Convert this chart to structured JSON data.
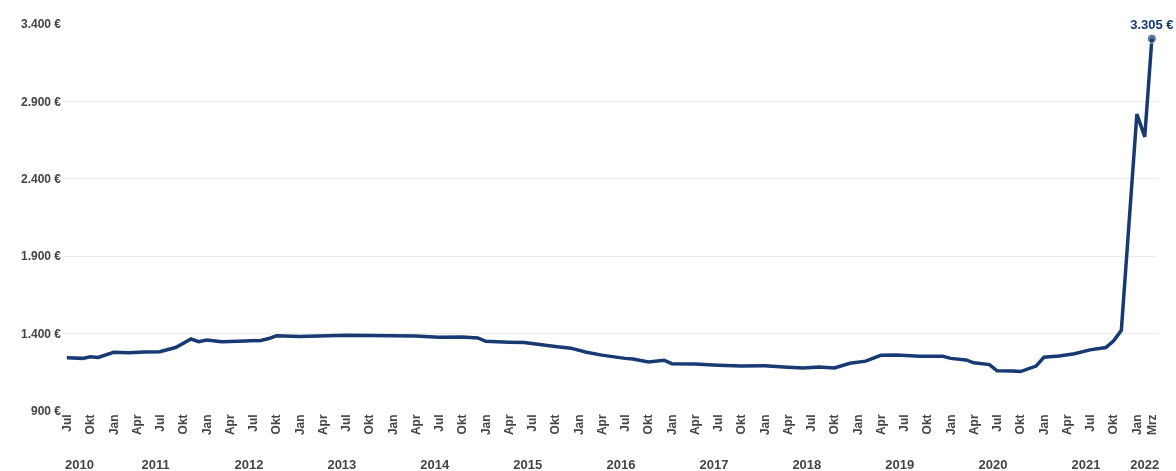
{
  "chart_data": {
    "type": "line",
    "x": [
      "2010-07",
      "2010-09",
      "2010-10",
      "2010-11",
      "2011-01",
      "2011-03",
      "2011-05",
      "2011-07",
      "2011-09",
      "2011-11",
      "2011-12",
      "2012-01",
      "2012-03",
      "2012-06",
      "2012-08",
      "2012-09",
      "2012-10",
      "2013-01",
      "2013-07",
      "2013-10",
      "2014-01",
      "2014-04",
      "2014-07",
      "2014-10",
      "2014-12",
      "2015-01",
      "2015-04",
      "2015-06",
      "2015-08",
      "2015-10",
      "2015-12",
      "2016-02",
      "2016-04",
      "2016-07",
      "2016-08",
      "2016-10",
      "2016-12",
      "2017-01",
      "2017-04",
      "2017-07",
      "2017-10",
      "2018-01",
      "2018-04",
      "2018-06",
      "2018-08",
      "2018-10",
      "2018-12",
      "2019-02",
      "2019-04",
      "2019-06",
      "2019-09",
      "2019-12",
      "2020-01",
      "2020-03",
      "2020-04",
      "2020-06",
      "2020-07",
      "2020-09",
      "2020-10",
      "2020-12",
      "2021-01",
      "2021-03",
      "2021-05",
      "2021-07",
      "2021-09",
      "2021-10",
      "2021-11",
      "2022-01",
      "2022-02",
      "2022-03"
    ],
    "series": [
      {
        "color": "#173a73",
        "values": [
          1244,
          1240,
          1250,
          1246,
          1279,
          1276,
          1281,
          1283,
          1310,
          1365,
          1348,
          1358,
          1348,
          1352,
          1356,
          1368,
          1386,
          1382,
          1390,
          1388,
          1386,
          1384,
          1376,
          1378,
          1372,
          1350,
          1344,
          1342,
          1330,
          1317,
          1306,
          1280,
          1261,
          1240,
          1236,
          1217,
          1228,
          1206,
          1204,
          1196,
          1190,
          1192,
          1182,
          1177,
          1184,
          1178,
          1208,
          1222,
          1260,
          1262,
          1253,
          1253,
          1240,
          1230,
          1211,
          1200,
          1160,
          1158,
          1155,
          1190,
          1247,
          1255,
          1270,
          1295,
          1310,
          1352,
          1421,
          2818,
          2671,
          3305
        ],
        "value_labels": [
          null,
          null,
          null,
          null,
          null,
          null,
          null,
          null,
          null,
          null,
          null,
          null,
          null,
          null,
          null,
          null,
          null,
          null,
          null,
          null,
          null,
          null,
          null,
          null,
          null,
          null,
          null,
          null,
          null,
          null,
          null,
          null,
          null,
          null,
          null,
          null,
          null,
          null,
          null,
          null,
          null,
          null,
          null,
          null,
          null,
          null,
          null,
          null,
          null,
          null,
          null,
          null,
          null,
          null,
          null,
          null,
          null,
          null,
          null,
          null,
          null,
          null,
          null,
          null,
          null,
          null,
          null,
          null,
          null,
          "3.305 €"
        ]
      }
    ],
    "xlim": [
      "2010-06-12",
      "2022-03-25"
    ],
    "xticks": [
      {
        "value": "2010-07",
        "label": "Jul"
      },
      {
        "value": "2010-10",
        "label": "Okt"
      },
      {
        "value": "2011-01",
        "label": "Jan"
      },
      {
        "value": "2011-04",
        "label": "Apr"
      },
      {
        "value": "2011-07",
        "label": "Jul"
      },
      {
        "value": "2011-10",
        "label": "Okt"
      },
      {
        "value": "2012-01",
        "label": "Jan"
      },
      {
        "value": "2012-04",
        "label": "Apr"
      },
      {
        "value": "2012-07",
        "label": "Jul"
      },
      {
        "value": "2012-10",
        "label": "Okt"
      },
      {
        "value": "2013-01",
        "label": "Jan"
      },
      {
        "value": "2013-04",
        "label": "Apr"
      },
      {
        "value": "2013-07",
        "label": "Jul"
      },
      {
        "value": "2013-10",
        "label": "Okt"
      },
      {
        "value": "2014-01",
        "label": "Jan"
      },
      {
        "value": "2014-04",
        "label": "Apr"
      },
      {
        "value": "2014-07",
        "label": "Jul"
      },
      {
        "value": "2014-10",
        "label": "Okt"
      },
      {
        "value": "2015-01",
        "label": "Jan"
      },
      {
        "value": "2015-04",
        "label": "Apr"
      },
      {
        "value": "2015-07",
        "label": "Jul"
      },
      {
        "value": "2015-10",
        "label": "Okt"
      },
      {
        "value": "2016-01",
        "label": "Jan"
      },
      {
        "value": "2016-04",
        "label": "Apr"
      },
      {
        "value": "2016-07",
        "label": "Jul"
      },
      {
        "value": "2016-10",
        "label": "Okt"
      },
      {
        "value": "2017-01",
        "label": "Jan"
      },
      {
        "value": "2017-04",
        "label": "Apr"
      },
      {
        "value": "2017-07",
        "label": "Jul"
      },
      {
        "value": "2017-10",
        "label": "Okt"
      },
      {
        "value": "2018-01",
        "label": "Jan"
      },
      {
        "value": "2018-04",
        "label": "Apr"
      },
      {
        "value": "2018-07",
        "label": "Jul"
      },
      {
        "value": "2018-10",
        "label": "Okt"
      },
      {
        "value": "2019-01",
        "label": "Jan"
      },
      {
        "value": "2019-04",
        "label": "Apr"
      },
      {
        "value": "2019-07",
        "label": "Jul"
      },
      {
        "value": "2019-10",
        "label": "Okt"
      },
      {
        "value": "2020-01",
        "label": "Jan"
      },
      {
        "value": "2020-04",
        "label": "Apr"
      },
      {
        "value": "2020-07",
        "label": "Jul"
      },
      {
        "value": "2020-10",
        "label": "Okt"
      },
      {
        "value": "2021-01",
        "label": "Jan"
      },
      {
        "value": "2021-04",
        "label": "Apr"
      },
      {
        "value": "2021-07",
        "label": "Jul"
      },
      {
        "value": "2021-10",
        "label": "Okt"
      },
      {
        "value": "2022-01",
        "label": "Jan"
      },
      {
        "value": "2022-03",
        "label": "Mrz"
      }
    ],
    "x2lim": [
      "2010-06-12",
      "2022-03-25"
    ],
    "x2ticks": [
      {
        "value": "2010-08-20",
        "label": "2010"
      },
      {
        "value": "2011-06-15",
        "label": "2011"
      },
      {
        "value": "2012-06-15",
        "label": "2012"
      },
      {
        "value": "2013-06-15",
        "label": "2013"
      },
      {
        "value": "2014-06-15",
        "label": "2014"
      },
      {
        "value": "2015-06-15",
        "label": "2015"
      },
      {
        "value": "2016-06-15",
        "label": "2016"
      },
      {
        "value": "2017-06-15",
        "label": "2017"
      },
      {
        "value": "2018-06-15",
        "label": "2018"
      },
      {
        "value": "2019-06-15",
        "label": "2019"
      },
      {
        "value": "2020-06-15",
        "label": "2020"
      },
      {
        "value": "2021-06-15",
        "label": "2021"
      },
      {
        "value": "2022-02-01",
        "label": "2022"
      }
    ],
    "ylim": [
      900,
      3400
    ],
    "yticks": [
      {
        "value": 900,
        "label": "900 €"
      },
      {
        "value": 1400,
        "label": "1.400 €"
      },
      {
        "value": 1900,
        "label": "1.900 €"
      },
      {
        "value": 2400,
        "label": "2.400 €"
      },
      {
        "value": 2900,
        "label": "2.900 €"
      },
      {
        "value": 3400,
        "label": "3.400 €"
      }
    ],
    "grid": "y",
    "legend": false
  }
}
